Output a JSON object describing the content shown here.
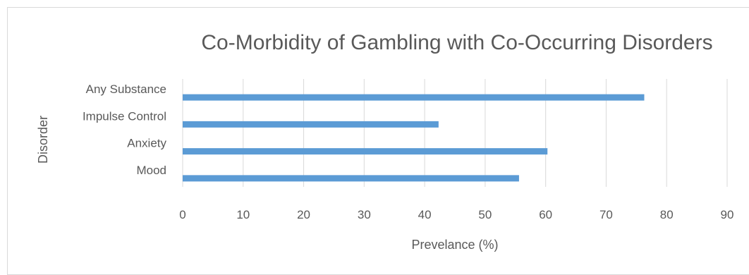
{
  "chart_data": {
    "type": "bar",
    "orientation": "horizontal",
    "title": "Co-Morbidity of Gambling with Co-Occurring Disorders",
    "xlabel": "Prevelance (%)",
    "ylabel": "Disorder",
    "categories": [
      "Any Substance",
      "Impulse Control",
      "Anxiety",
      "Mood"
    ],
    "values": [
      76.3,
      42.3,
      60.3,
      55.6
    ],
    "x_ticks": [
      "0",
      "10",
      "20",
      "30",
      "40",
      "50",
      "60",
      "70",
      "80",
      "90"
    ],
    "xlim": [
      0,
      90
    ],
    "grid": true,
    "legend": "none",
    "bar_color": "#5b9bd5",
    "grid_color": "#d9d9d9",
    "text_color": "#595959"
  }
}
